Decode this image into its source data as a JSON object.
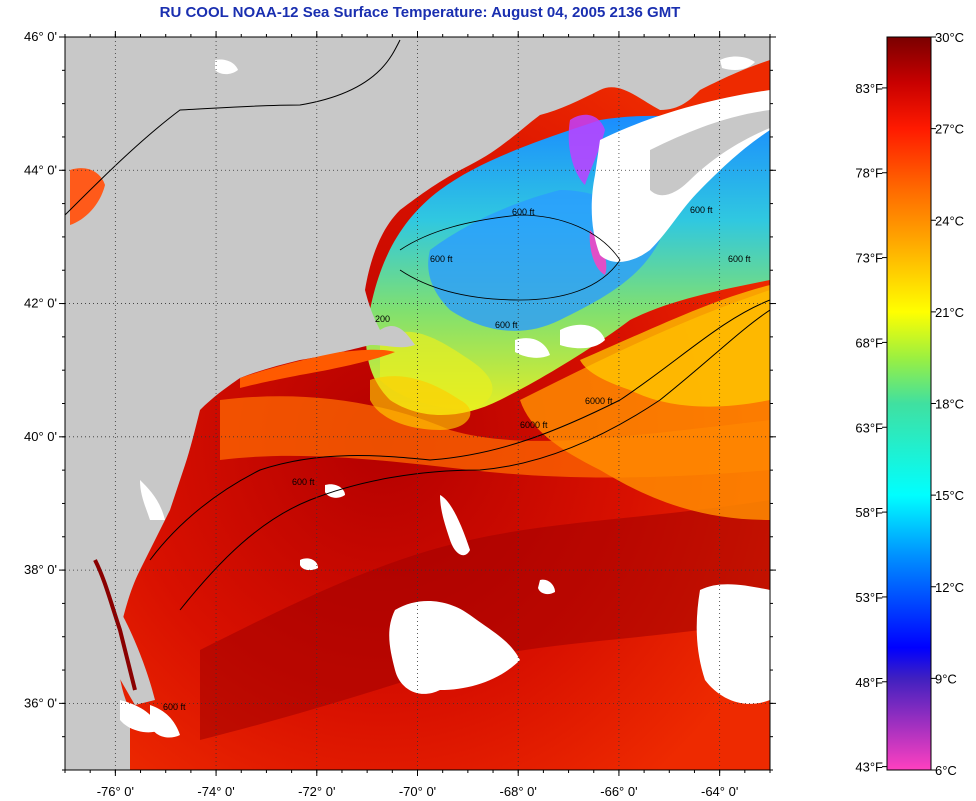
{
  "title": "RU COOL  NOAA-12  Sea Surface Temperature:  August 04, 2005 2136 GMT",
  "map": {
    "lon_range": [
      -77,
      -63
    ],
    "lat_range": [
      35,
      46
    ],
    "lat_ticks": [
      {
        "value": 46,
        "label": "46° 0'"
      },
      {
        "value": 44,
        "label": "44° 0'"
      },
      {
        "value": 42,
        "label": "42° 0'"
      },
      {
        "value": 40,
        "label": "40° 0'"
      },
      {
        "value": 38,
        "label": "38° 0'"
      },
      {
        "value": 36,
        "label": "36° 0'"
      }
    ],
    "lon_ticks": [
      {
        "value": -76,
        "label": "-76° 0'"
      },
      {
        "value": -74,
        "label": "-74° 0'"
      },
      {
        "value": -72,
        "label": "-72° 0'"
      },
      {
        "value": -70,
        "label": "-70° 0'"
      },
      {
        "value": -68,
        "label": "-68° 0'"
      },
      {
        "value": -66,
        "label": "-66° 0'"
      },
      {
        "value": -64,
        "label": "-64° 0'"
      }
    ],
    "contour_labels": [
      "600 ft",
      "600 ft",
      "600 ft",
      "600 ft",
      "600 ft",
      "600 ft",
      "6000 ft",
      "6000 ft",
      "600 ft",
      "200"
    ],
    "colors": {
      "land": "#c8c8c8",
      "cloud": "#ffffff",
      "grid": "#333333"
    }
  },
  "colorbar": {
    "celsius": [
      {
        "value": 30,
        "label": "30°C"
      },
      {
        "value": 27,
        "label": "27°C"
      },
      {
        "value": 24,
        "label": "24°C"
      },
      {
        "value": 21,
        "label": "21°C"
      },
      {
        "value": 18,
        "label": "18°C"
      },
      {
        "value": 15,
        "label": "15°C"
      },
      {
        "value": 12,
        "label": "12°C"
      },
      {
        "value": 9,
        "label": "9°C"
      },
      {
        "value": 6,
        "label": "6°C"
      }
    ],
    "fahrenheit": [
      {
        "value": 83,
        "label": "83°F"
      },
      {
        "value": 78,
        "label": "78°F"
      },
      {
        "value": 73,
        "label": "73°F"
      },
      {
        "value": 68,
        "label": "68°F"
      },
      {
        "value": 63,
        "label": "63°F"
      },
      {
        "value": 58,
        "label": "58°F"
      },
      {
        "value": 53,
        "label": "53°F"
      },
      {
        "value": 48,
        "label": "48°F"
      },
      {
        "value": 43,
        "label": "43°F"
      }
    ],
    "range_c": [
      6,
      30
    ],
    "stops": [
      {
        "c": 30,
        "color": "#7a0000"
      },
      {
        "c": 28.5,
        "color": "#c80000"
      },
      {
        "c": 27,
        "color": "#ff1a00"
      },
      {
        "c": 25,
        "color": "#ff6a00"
      },
      {
        "c": 23.5,
        "color": "#ffa000"
      },
      {
        "c": 21,
        "color": "#ffff00"
      },
      {
        "c": 19.5,
        "color": "#9cf040"
      },
      {
        "c": 18,
        "color": "#40e0a0"
      },
      {
        "c": 15,
        "color": "#00ffff"
      },
      {
        "c": 13,
        "color": "#0090ff"
      },
      {
        "c": 10,
        "color": "#0000ff"
      },
      {
        "c": 9,
        "color": "#4020c0"
      },
      {
        "c": 6,
        "color": "#ff40c0"
      }
    ]
  }
}
